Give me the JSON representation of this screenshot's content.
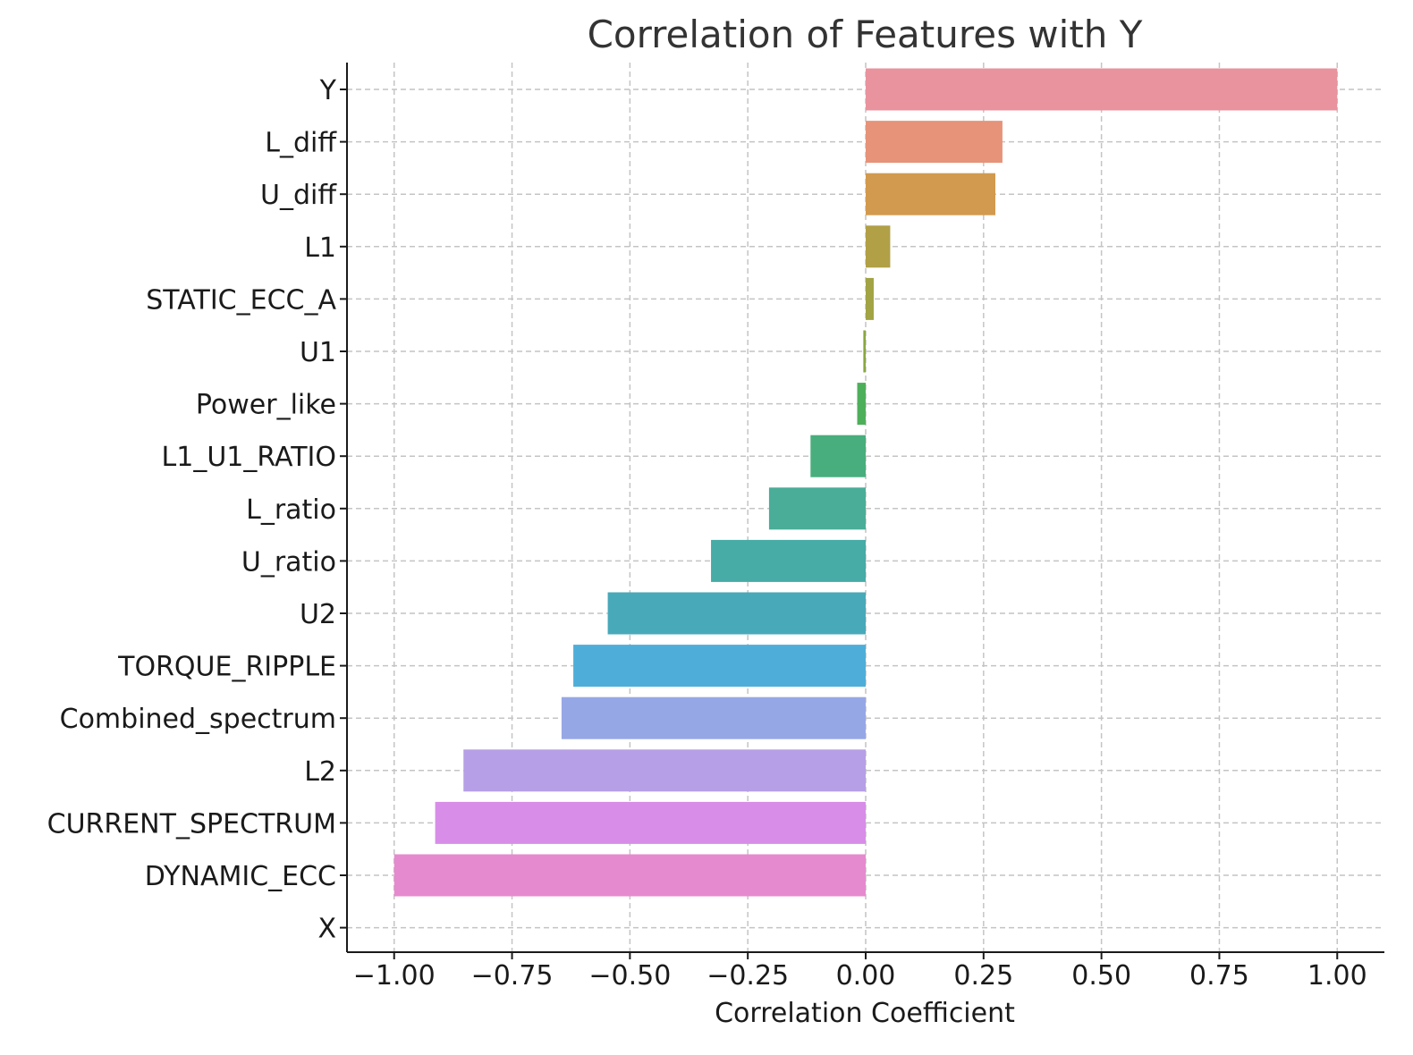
{
  "chart_data": {
    "type": "bar",
    "orientation": "horizontal",
    "title": "Correlation of Features with Y",
    "xlabel": "Correlation Coefficient",
    "ylabel": "",
    "xlim": [
      -1.1,
      1.1
    ],
    "grid": true,
    "x_ticks": [
      -1.0,
      -0.75,
      -0.5,
      -0.25,
      0.0,
      0.25,
      0.5,
      0.75,
      1.0
    ],
    "x_tick_labels": [
      "−1.00",
      "−0.75",
      "−0.50",
      "−0.25",
      "0.00",
      "0.25",
      "0.50",
      "0.75",
      "1.00"
    ],
    "categories": [
      "Y",
      "L_diff",
      "U_diff",
      "L1",
      "STATIC_ECC_A",
      "U1",
      "Power_like",
      "L1_U1_RATIO",
      "L_ratio",
      "U_ratio",
      "U2",
      "TORQUE_RIPPLE",
      "Combined_spectrum",
      "L2",
      "CURRENT_SPECTRUM",
      "DYNAMIC_ECC",
      "X"
    ],
    "values": [
      1.0,
      0.29,
      0.275,
      0.052,
      0.017,
      -0.005,
      -0.018,
      -0.117,
      -0.205,
      -0.328,
      -0.547,
      -0.62,
      -0.645,
      -0.853,
      -0.913,
      -1.0,
      null
    ],
    "colors": [
      "#e8939e",
      "#e6937a",
      "#d29a4e",
      "#b1a046",
      "#a1a344",
      "#8aa73f",
      "#4eaf5a",
      "#48ae7d",
      "#4aad97",
      "#47aba6",
      "#48a9b9",
      "#4eaed9",
      "#96a7e6",
      "#b69fe6",
      "#d88de8",
      "#e68acf",
      "#ee8fb9"
    ]
  }
}
